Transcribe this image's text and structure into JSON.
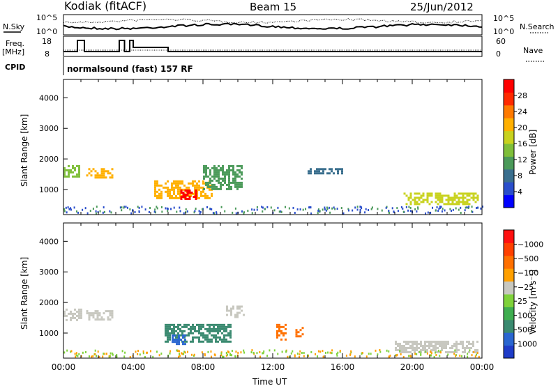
{
  "header": {
    "site": "Kodiak (fitACF)",
    "beam": "Beam 15",
    "date": "25/Jun/2012"
  },
  "top_panels": {
    "nsky_label": "N.Sky",
    "nsky_ticks": [
      "10^5",
      "10^0"
    ],
    "nsearch_label": "N.Search",
    "nsearch_ticks": [
      "10^5",
      "10^0"
    ],
    "freq_label_1": "Freq.",
    "freq_label_2": "[MHz]",
    "freq_ticks": [
      "18",
      "8"
    ],
    "nave_label": "Nave",
    "nave_ticks": [
      "60",
      "0"
    ],
    "cpid_label": "CPID",
    "cpid_text": "normalsound (fast) 157 RF"
  },
  "chart_data": [
    {
      "type": "heatmap",
      "title": "",
      "ylabel": "Slant Range [km]",
      "xlabel": "",
      "x_range_hours": [
        0,
        24
      ],
      "ylim": [
        180,
        4600
      ],
      "yticks": [
        "1000",
        "2000",
        "3000",
        "4000"
      ],
      "colorbar": {
        "label": "Power [dB]",
        "ticks": [
          "4",
          "8",
          "12",
          "16",
          "20",
          "24",
          "28"
        ],
        "colors": [
          "#0000ff",
          "#2a4ecb",
          "#3a6f8e",
          "#4b9a5a",
          "#7fbf3a",
          "#c8d21e",
          "#ffb000",
          "#ff7a00",
          "#ff2a00",
          "#ff0000"
        ]
      },
      "echo_regions": [
        {
          "t_start": 0.0,
          "t_end": 0.9,
          "r_low": 1400,
          "r_high": 1800,
          "value_db": 14
        },
        {
          "t_start": 1.3,
          "t_end": 2.8,
          "r_low": 1400,
          "r_high": 1700,
          "value_db": 18
        },
        {
          "t_start": 5.2,
          "t_end": 8.5,
          "r_low": 700,
          "r_high": 1300,
          "value_db": 20
        },
        {
          "t_start": 6.7,
          "t_end": 7.6,
          "r_low": 700,
          "r_high": 1000,
          "value_db": 28
        },
        {
          "t_start": 8.0,
          "t_end": 10.2,
          "r_low": 1000,
          "r_high": 1800,
          "value_db": 12
        },
        {
          "t_start": 14.0,
          "t_end": 16.0,
          "r_low": 1500,
          "r_high": 1700,
          "value_db": 8
        },
        {
          "t_start": 19.5,
          "t_end": 23.8,
          "r_low": 500,
          "r_high": 900,
          "value_db": 16
        }
      ]
    },
    {
      "type": "heatmap",
      "title": "",
      "ylabel": "Slant Range [km]",
      "xlabel": "Time UT",
      "x_range_hours": [
        0,
        24
      ],
      "xticks": [
        "00:00",
        "04:00",
        "08:00",
        "12:00",
        "16:00",
        "20:00",
        "00:00"
      ],
      "ylim": [
        180,
        4600
      ],
      "yticks": [
        "1000",
        "2000",
        "3000",
        "4000"
      ],
      "colorbar": {
        "label": "Velocity [m s⁻¹]",
        "ticks": [
          "1000",
          "500",
          "100",
          "25",
          "−25",
          "−100",
          "−500",
          "−1000"
        ],
        "colors": [
          "#1f3cc8",
          "#2a66d0",
          "#3a8a70",
          "#3fae50",
          "#7fd23a",
          "#c8c8c0",
          "#ffa000",
          "#ff7000",
          "#ff4000",
          "#ff1010"
        ]
      },
      "echo_regions": [
        {
          "t_start": 0.0,
          "t_end": 1.0,
          "r_low": 1450,
          "r_high": 1800,
          "velocity": 0
        },
        {
          "t_start": 1.3,
          "t_end": 2.8,
          "r_low": 1450,
          "r_high": 1750,
          "velocity": 0
        },
        {
          "t_start": 5.8,
          "t_end": 9.6,
          "r_low": 700,
          "r_high": 1300,
          "velocity": 150
        },
        {
          "t_start": 6.2,
          "t_end": 7.0,
          "r_low": 650,
          "r_high": 950,
          "velocity": 600
        },
        {
          "t_start": 9.2,
          "t_end": 10.4,
          "r_low": 1550,
          "r_high": 1900,
          "velocity": 0
        },
        {
          "t_start": 12.2,
          "t_end": 12.8,
          "r_low": 800,
          "r_high": 1300,
          "velocity": -300
        },
        {
          "t_start": 13.3,
          "t_end": 13.7,
          "r_low": 900,
          "r_high": 1200,
          "velocity": -300
        },
        {
          "t_start": 19.0,
          "t_end": 23.8,
          "r_low": 400,
          "r_high": 750,
          "velocity": 0
        }
      ]
    }
  ]
}
